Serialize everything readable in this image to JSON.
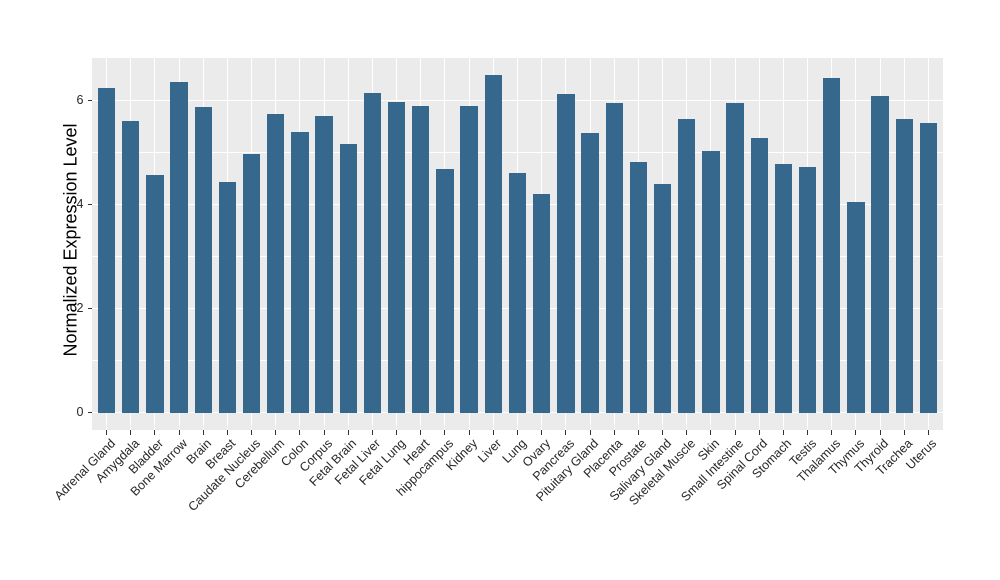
{
  "figure": {
    "background": "#ffffff"
  },
  "chart_data": {
    "type": "bar",
    "title": "",
    "xlabel": "",
    "ylabel": "Normalized Expression Level",
    "categories": [
      "Adrenal Gland",
      "Amygdala",
      "Bladder",
      "Bone Marrow",
      "Brain",
      "Breast",
      "Caudate Nucleus",
      "Cerebellum",
      "Colon",
      "Corpus",
      "Fetal Brain",
      "Fetal Liver",
      "Fetal Lung",
      "Heart",
      "hippocampus",
      "Kidney",
      "Liver",
      "Lung",
      "Ovary",
      "Pancreas",
      "Pituitary Gland",
      "Placenta",
      "Prostate",
      "Salivary Gland",
      "Skeletal Muscle",
      "Skin",
      "Small Intestine",
      "Spinal Cord",
      "Stomach",
      "Testis",
      "Thalamus",
      "Thymus",
      "Thyroid",
      "Trachea",
      "Uterus"
    ],
    "values": [
      6.24,
      5.61,
      4.57,
      6.34,
      5.87,
      4.43,
      4.97,
      5.74,
      5.39,
      5.69,
      5.15,
      6.13,
      5.96,
      5.89,
      4.67,
      5.89,
      6.49,
      4.6,
      4.2,
      6.11,
      5.37,
      5.95,
      4.81,
      4.39,
      5.64,
      5.03,
      5.94,
      5.28,
      4.78,
      4.71,
      6.43,
      4.05,
      6.08,
      5.64,
      5.56
    ],
    "y_ticks": [
      0,
      2,
      4,
      6
    ],
    "y_minor_ticks": [
      1,
      3,
      5
    ],
    "ylim": [
      -0.33,
      6.81
    ],
    "grid": "on",
    "legend": "none",
    "bar_color": "#36678D",
    "panel_background": "#EBEBEB",
    "grid_color": "#FFFFFF",
    "tick_mark_color": "#333333",
    "tick_label_color": "#262626",
    "axis_title_color": "#000000"
  }
}
